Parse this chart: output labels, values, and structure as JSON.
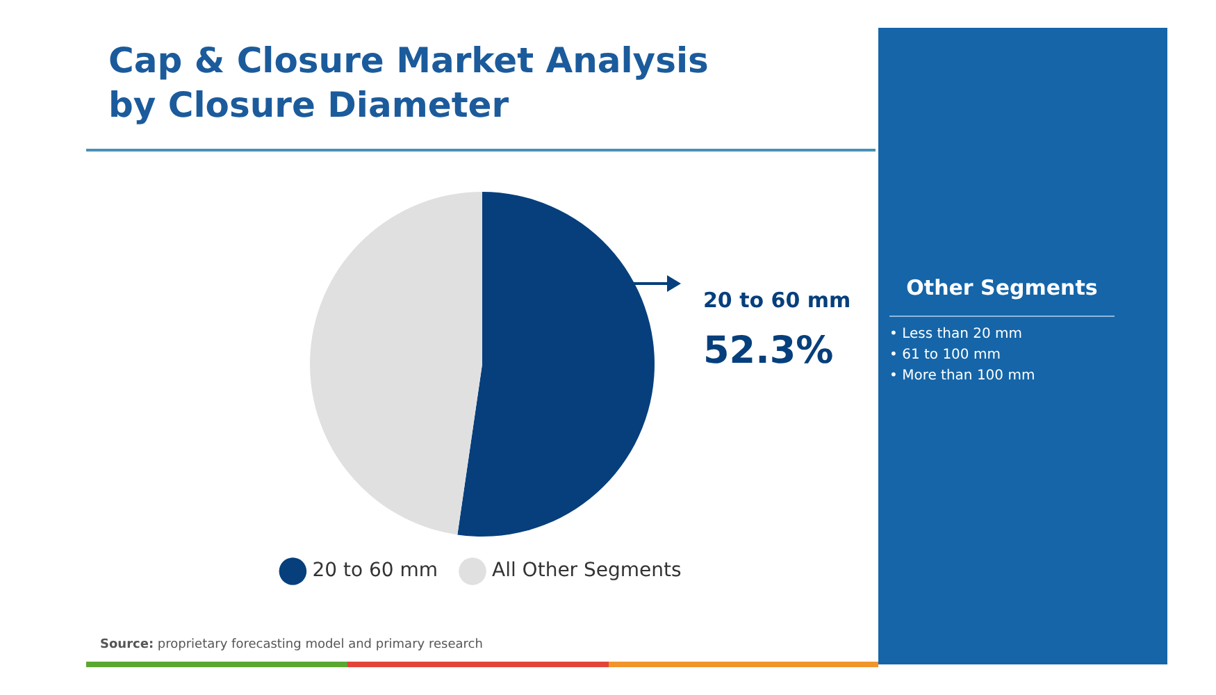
{
  "chart_data": {
    "type": "pie",
    "title": "Cap & Closure Market Analysis by Closure Diameter",
    "categories": [
      "20 to 60 mm",
      "All Other Segments"
    ],
    "values": [
      52.3,
      47.7
    ],
    "colors": [
      "#063f7c",
      "#e0e0e0"
    ],
    "value_labels": [
      "52.3%",
      null
    ],
    "legend": "bottom",
    "annotations": [
      "Source: proprietary forecasting model and primary research",
      "Other Segments",
      "• Less than 20 mm",
      "• 61 to 100 mm",
      "• More than 100 mm"
    ]
  }
}
